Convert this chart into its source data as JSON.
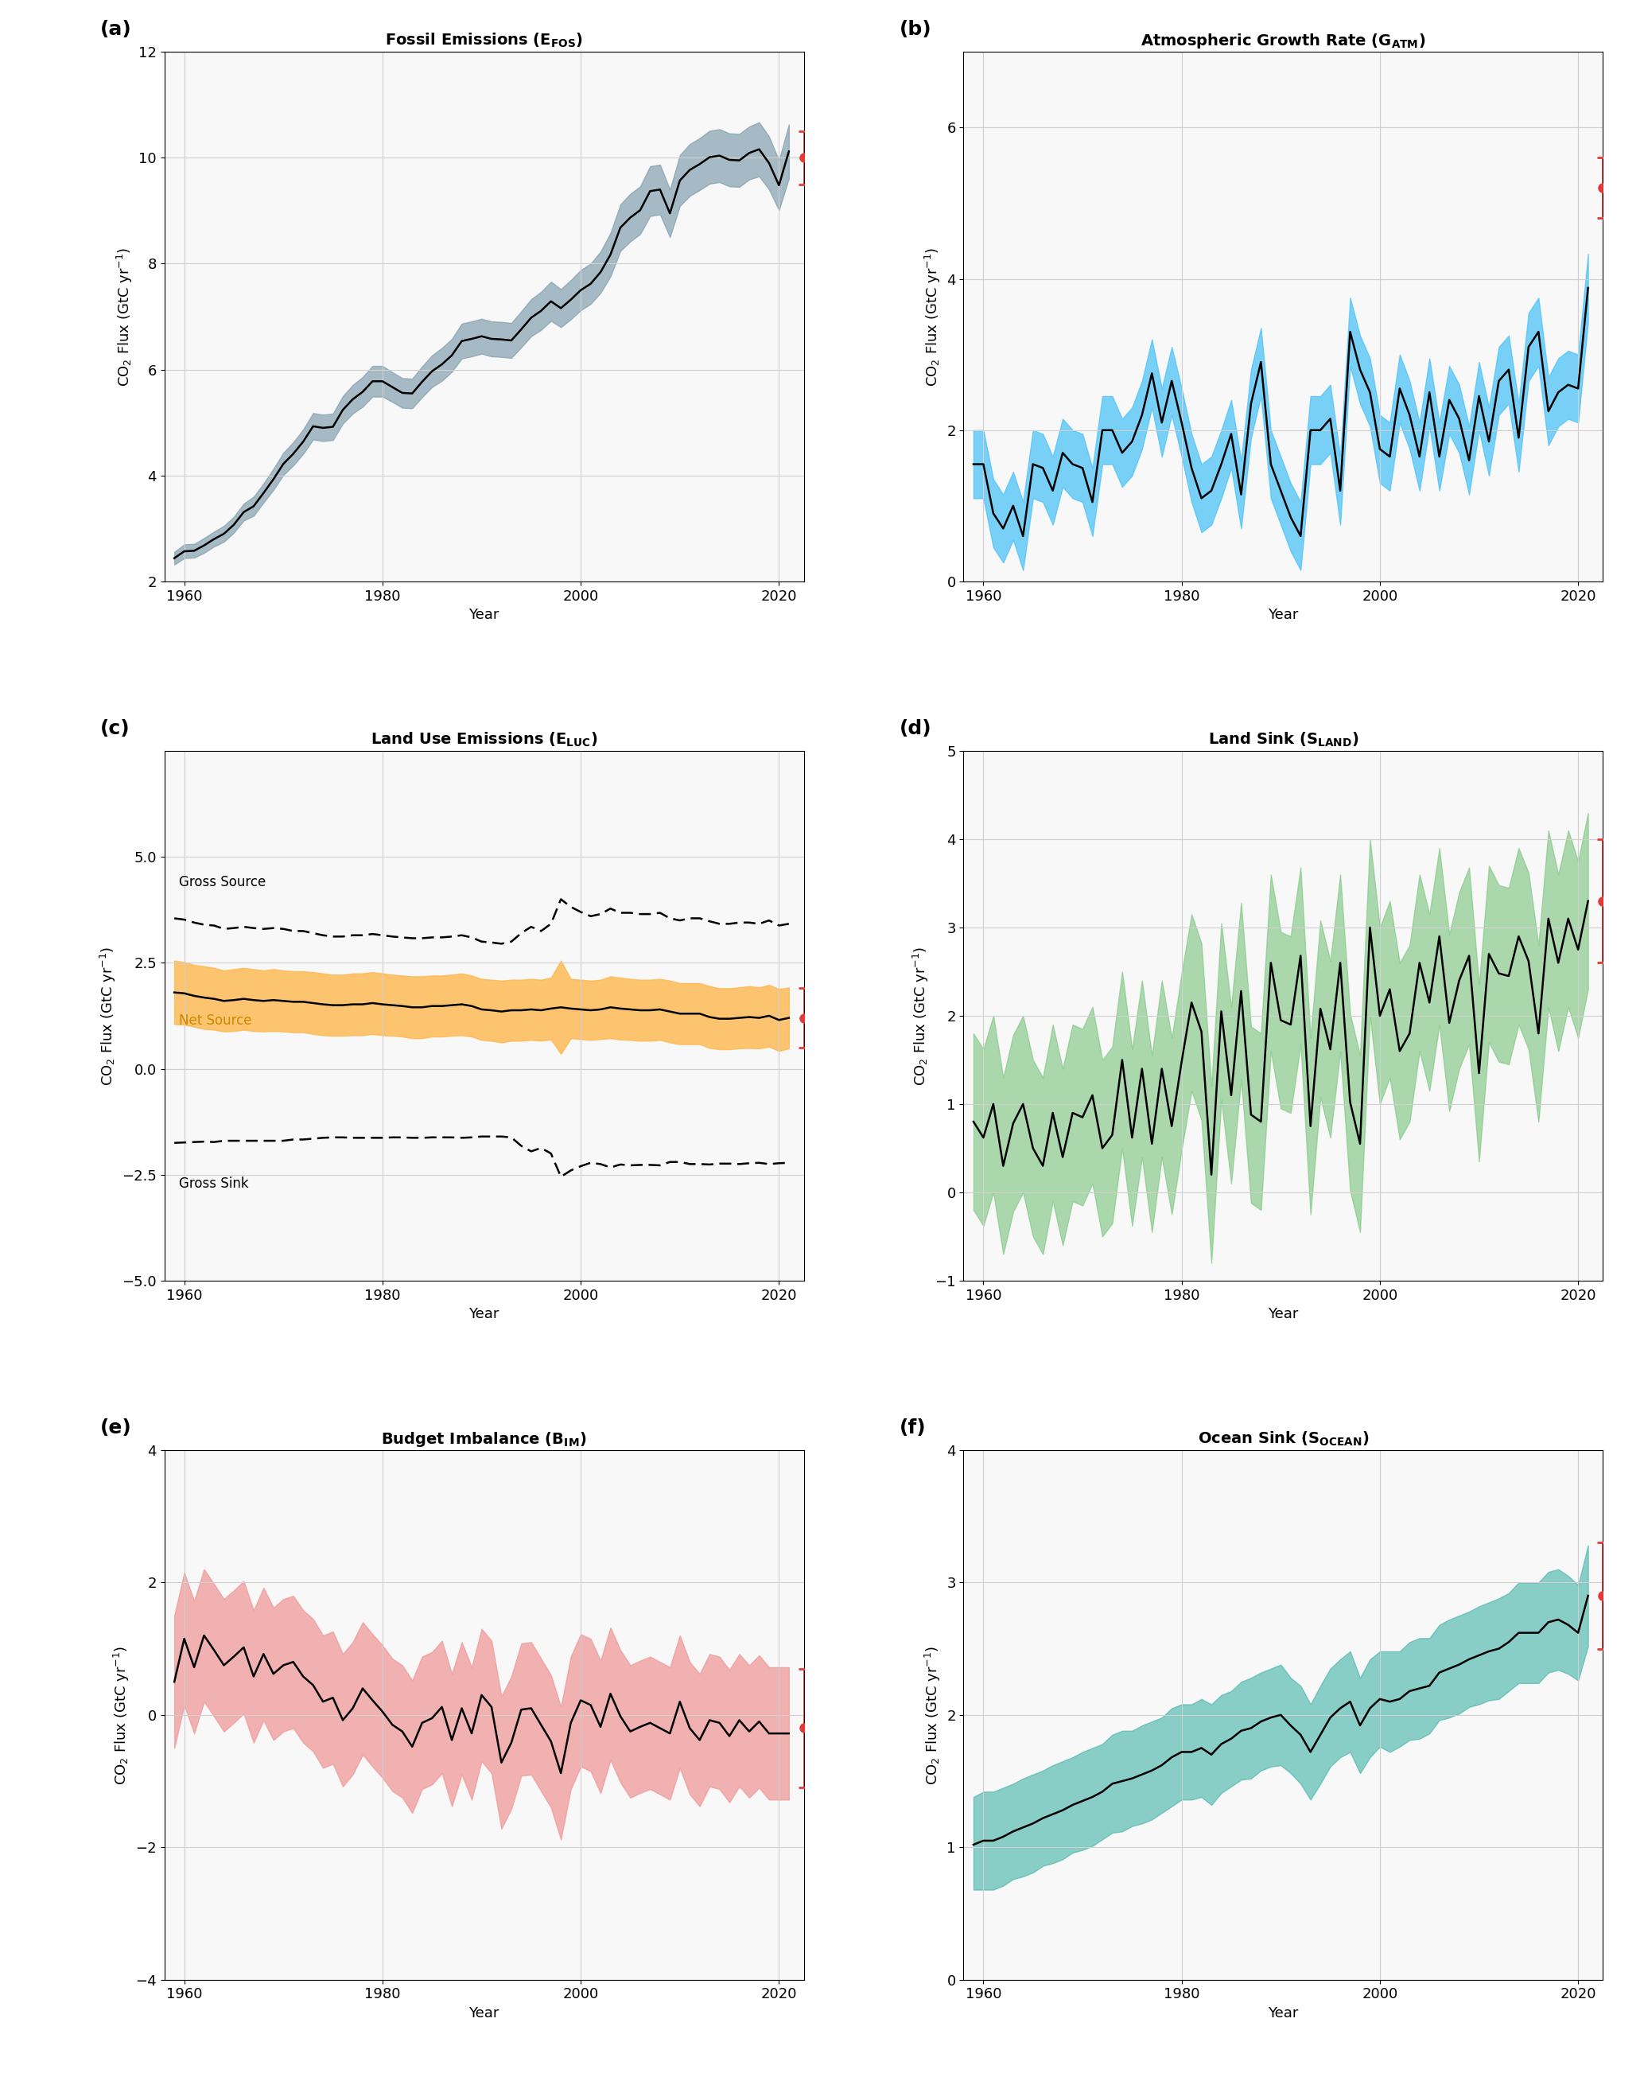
{
  "years": [
    1959,
    1960,
    1961,
    1962,
    1963,
    1964,
    1965,
    1966,
    1967,
    1968,
    1969,
    1970,
    1971,
    1972,
    1973,
    1974,
    1975,
    1976,
    1977,
    1978,
    1979,
    1980,
    1981,
    1982,
    1983,
    1984,
    1985,
    1986,
    1987,
    1988,
    1989,
    1990,
    1991,
    1992,
    1993,
    1994,
    1995,
    1996,
    1997,
    1998,
    1999,
    2000,
    2001,
    2002,
    2003,
    2004,
    2005,
    2006,
    2007,
    2008,
    2009,
    2010,
    2011,
    2012,
    2013,
    2014,
    2015,
    2016,
    2017,
    2018,
    2019,
    2020,
    2021
  ],
  "fos_mean": [
    2.44,
    2.57,
    2.58,
    2.68,
    2.8,
    2.9,
    3.07,
    3.31,
    3.42,
    3.67,
    3.93,
    4.22,
    4.41,
    4.64,
    4.93,
    4.9,
    4.92,
    5.24,
    5.44,
    5.58,
    5.78,
    5.78,
    5.67,
    5.56,
    5.55,
    5.77,
    5.97,
    6.1,
    6.27,
    6.54,
    6.58,
    6.63,
    6.58,
    6.57,
    6.55,
    6.76,
    6.98,
    7.11,
    7.29,
    7.16,
    7.32,
    7.5,
    7.62,
    7.84,
    8.17,
    8.68,
    8.87,
    9.01,
    9.37,
    9.4,
    8.95,
    9.57,
    9.77,
    9.88,
    10.01,
    10.04,
    9.96,
    9.95,
    10.09,
    10.16,
    9.9,
    9.48,
    10.12
  ],
  "fos_upper": [
    2.56,
    2.7,
    2.71,
    2.82,
    2.94,
    3.05,
    3.22,
    3.47,
    3.6,
    3.85,
    4.13,
    4.43,
    4.63,
    4.87,
    5.18,
    5.15,
    5.17,
    5.5,
    5.71,
    5.86,
    6.07,
    6.07,
    5.95,
    5.84,
    5.83,
    6.06,
    6.27,
    6.41,
    6.58,
    6.87,
    6.91,
    6.96,
    6.91,
    6.9,
    6.88,
    7.1,
    7.33,
    7.47,
    7.66,
    7.52,
    7.69,
    7.88,
    8.0,
    8.23,
    8.58,
    9.12,
    9.32,
    9.46,
    9.84,
    9.87,
    9.4,
    10.05,
    10.26,
    10.37,
    10.51,
    10.54,
    10.46,
    10.45,
    10.59,
    10.67,
    10.4,
    9.95,
    10.63
  ],
  "fos_lower": [
    2.32,
    2.44,
    2.45,
    2.54,
    2.66,
    2.75,
    2.92,
    3.15,
    3.24,
    3.49,
    3.73,
    4.01,
    4.19,
    4.41,
    4.68,
    4.65,
    4.67,
    4.98,
    5.17,
    5.3,
    5.49,
    5.49,
    5.39,
    5.28,
    5.27,
    5.48,
    5.67,
    5.79,
    5.96,
    6.21,
    6.25,
    6.3,
    6.25,
    6.24,
    6.22,
    6.42,
    6.63,
    6.75,
    6.92,
    6.8,
    6.95,
    7.12,
    7.24,
    7.45,
    7.76,
    8.24,
    8.42,
    8.56,
    8.9,
    8.93,
    8.5,
    9.09,
    9.28,
    9.39,
    9.51,
    9.54,
    9.46,
    9.45,
    9.59,
    9.65,
    9.4,
    9.01,
    9.61
  ],
  "fos_2022_val": 10.0,
  "fos_2022_err": 0.5,
  "atm_mean": [
    1.55,
    1.55,
    0.9,
    0.7,
    1.0,
    0.6,
    1.55,
    1.5,
    1.2,
    1.7,
    1.55,
    1.5,
    1.05,
    2.0,
    2.0,
    1.7,
    1.85,
    2.2,
    2.75,
    2.1,
    2.65,
    2.1,
    1.5,
    1.1,
    1.2,
    1.55,
    1.95,
    1.15,
    2.35,
    2.9,
    1.55,
    1.2,
    0.85,
    0.6,
    2.0,
    2.0,
    2.15,
    1.2,
    3.3,
    2.8,
    2.5,
    1.75,
    1.65,
    2.55,
    2.2,
    1.65,
    2.5,
    1.65,
    2.4,
    2.15,
    1.6,
    2.45,
    1.85,
    2.65,
    2.8,
    1.9,
    3.1,
    3.3,
    2.25,
    2.5,
    2.6,
    2.55,
    3.88
  ],
  "atm_upper": [
    2.0,
    2.0,
    1.35,
    1.15,
    1.45,
    1.05,
    2.0,
    1.95,
    1.65,
    2.15,
    2.0,
    1.95,
    1.5,
    2.45,
    2.45,
    2.15,
    2.3,
    2.65,
    3.2,
    2.55,
    3.1,
    2.55,
    1.95,
    1.55,
    1.65,
    2.0,
    2.4,
    1.6,
    2.8,
    3.35,
    2.0,
    1.65,
    1.3,
    1.05,
    2.45,
    2.45,
    2.6,
    1.65,
    3.75,
    3.25,
    2.95,
    2.2,
    2.1,
    3.0,
    2.65,
    2.1,
    2.95,
    2.1,
    2.85,
    2.6,
    2.05,
    2.9,
    2.3,
    3.1,
    3.25,
    2.35,
    3.55,
    3.75,
    2.7,
    2.95,
    3.05,
    3.0,
    4.33
  ],
  "atm_lower": [
    1.1,
    1.1,
    0.45,
    0.25,
    0.55,
    0.15,
    1.1,
    1.05,
    0.75,
    1.25,
    1.1,
    1.05,
    0.6,
    1.55,
    1.55,
    1.25,
    1.4,
    1.75,
    2.3,
    1.65,
    2.2,
    1.65,
    1.05,
    0.65,
    0.75,
    1.1,
    1.5,
    0.7,
    1.9,
    2.45,
    1.1,
    0.75,
    0.4,
    0.15,
    1.55,
    1.55,
    1.7,
    0.75,
    2.85,
    2.35,
    2.05,
    1.3,
    1.2,
    2.1,
    1.75,
    1.2,
    2.05,
    1.2,
    1.95,
    1.7,
    1.15,
    2.0,
    1.4,
    2.2,
    2.35,
    1.45,
    2.65,
    2.85,
    1.8,
    2.05,
    2.15,
    2.1,
    3.43
  ],
  "atm_2022_val": 5.2,
  "atm_2022_err": 0.4,
  "luc_net_mean": [
    1.8,
    1.78,
    1.72,
    1.68,
    1.65,
    1.6,
    1.62,
    1.65,
    1.62,
    1.6,
    1.62,
    1.6,
    1.58,
    1.58,
    1.55,
    1.52,
    1.5,
    1.5,
    1.52,
    1.52,
    1.55,
    1.52,
    1.5,
    1.48,
    1.45,
    1.45,
    1.48,
    1.48,
    1.5,
    1.52,
    1.48,
    1.4,
    1.38,
    1.35,
    1.38,
    1.38,
    1.4,
    1.38,
    1.42,
    1.45,
    1.42,
    1.4,
    1.38,
    1.4,
    1.45,
    1.42,
    1.4,
    1.38,
    1.38,
    1.4,
    1.35,
    1.3,
    1.3,
    1.3,
    1.22,
    1.18,
    1.18,
    1.2,
    1.22,
    1.2,
    1.25,
    1.15,
    1.2
  ],
  "luc_net_upper": [
    2.55,
    2.52,
    2.45,
    2.42,
    2.38,
    2.32,
    2.35,
    2.38,
    2.35,
    2.32,
    2.35,
    2.32,
    2.3,
    2.3,
    2.28,
    2.25,
    2.22,
    2.22,
    2.25,
    2.25,
    2.28,
    2.25,
    2.22,
    2.2,
    2.18,
    2.18,
    2.2,
    2.2,
    2.22,
    2.25,
    2.2,
    2.12,
    2.1,
    2.08,
    2.1,
    2.1,
    2.12,
    2.1,
    2.15,
    2.55,
    2.12,
    2.1,
    2.08,
    2.1,
    2.18,
    2.15,
    2.12,
    2.1,
    2.1,
    2.12,
    2.08,
    2.02,
    2.02,
    2.02,
    1.95,
    1.9,
    1.9,
    1.92,
    1.95,
    1.92,
    1.98,
    1.88,
    1.92
  ],
  "luc_net_lower": [
    1.05,
    1.04,
    0.99,
    0.94,
    0.92,
    0.88,
    0.89,
    0.92,
    0.89,
    0.88,
    0.89,
    0.88,
    0.86,
    0.86,
    0.82,
    0.79,
    0.78,
    0.78,
    0.79,
    0.79,
    0.82,
    0.79,
    0.78,
    0.76,
    0.72,
    0.72,
    0.76,
    0.76,
    0.78,
    0.79,
    0.76,
    0.68,
    0.66,
    0.62,
    0.66,
    0.66,
    0.68,
    0.66,
    0.69,
    0.35,
    0.72,
    0.7,
    0.68,
    0.7,
    0.72,
    0.69,
    0.68,
    0.66,
    0.66,
    0.68,
    0.62,
    0.58,
    0.58,
    0.58,
    0.49,
    0.46,
    0.46,
    0.48,
    0.49,
    0.48,
    0.52,
    0.42,
    0.48
  ],
  "luc_gross_source": [
    3.55,
    3.52,
    3.45,
    3.4,
    3.38,
    3.3,
    3.32,
    3.35,
    3.32,
    3.3,
    3.32,
    3.3,
    3.25,
    3.25,
    3.2,
    3.15,
    3.12,
    3.12,
    3.15,
    3.15,
    3.18,
    3.15,
    3.12,
    3.1,
    3.08,
    3.08,
    3.1,
    3.1,
    3.12,
    3.15,
    3.1,
    3.0,
    2.98,
    2.95,
    3.0,
    3.2,
    3.35,
    3.25,
    3.42,
    4.0,
    3.82,
    3.7,
    3.6,
    3.65,
    3.78,
    3.68,
    3.68,
    3.65,
    3.65,
    3.68,
    3.55,
    3.5,
    3.55,
    3.55,
    3.48,
    3.42,
    3.42,
    3.45,
    3.45,
    3.42,
    3.5,
    3.38,
    3.42
  ],
  "luc_gross_sink": [
    -1.75,
    -1.74,
    -1.73,
    -1.72,
    -1.73,
    -1.7,
    -1.7,
    -1.7,
    -1.7,
    -1.7,
    -1.7,
    -1.7,
    -1.67,
    -1.67,
    -1.65,
    -1.63,
    -1.62,
    -1.62,
    -1.63,
    -1.63,
    -1.63,
    -1.63,
    -1.62,
    -1.62,
    -1.63,
    -1.63,
    -1.62,
    -1.62,
    -1.62,
    -1.63,
    -1.62,
    -1.6,
    -1.6,
    -1.6,
    -1.62,
    -1.82,
    -1.95,
    -1.87,
    -2.0,
    -2.55,
    -2.4,
    -2.3,
    -2.22,
    -2.25,
    -2.33,
    -2.26,
    -2.28,
    -2.27,
    -2.27,
    -2.28,
    -2.2,
    -2.2,
    -2.25,
    -2.25,
    -2.26,
    -2.24,
    -2.24,
    -2.25,
    -2.23,
    -2.22,
    -2.25,
    -2.23,
    -2.22
  ],
  "luc_2022_val": 1.2,
  "luc_2022_err": 0.7,
  "land_mean": [
    0.8,
    0.62,
    1.0,
    0.3,
    0.78,
    1.0,
    0.5,
    0.3,
    0.9,
    0.4,
    0.9,
    0.85,
    1.1,
    0.5,
    0.65,
    1.5,
    0.62,
    1.4,
    0.55,
    1.4,
    0.75,
    1.48,
    2.15,
    1.82,
    0.2,
    2.05,
    1.1,
    2.28,
    0.88,
    0.8,
    2.6,
    1.95,
    1.9,
    2.68,
    0.75,
    2.08,
    1.62,
    2.6,
    1.02,
    0.55,
    3.0,
    2.0,
    2.3,
    1.6,
    1.8,
    2.6,
    2.15,
    2.9,
    1.92,
    2.4,
    2.68,
    1.35,
    2.7,
    2.48,
    2.45,
    2.9,
    2.62,
    1.8,
    3.1,
    2.6,
    3.1,
    2.75,
    3.3
  ],
  "land_upper": [
    1.8,
    1.62,
    2.0,
    1.3,
    1.78,
    2.0,
    1.5,
    1.3,
    1.9,
    1.4,
    1.9,
    1.85,
    2.1,
    1.5,
    1.65,
    2.5,
    1.62,
    2.4,
    1.55,
    2.4,
    1.75,
    2.48,
    3.15,
    2.82,
    1.2,
    3.05,
    2.1,
    3.28,
    1.88,
    1.8,
    3.6,
    2.95,
    2.9,
    3.68,
    1.75,
    3.08,
    2.62,
    3.6,
    2.02,
    1.55,
    4.0,
    3.0,
    3.3,
    2.6,
    2.8,
    3.6,
    3.15,
    3.9,
    2.92,
    3.4,
    3.68,
    2.35,
    3.7,
    3.48,
    3.45,
    3.9,
    3.62,
    2.8,
    4.1,
    3.6,
    4.1,
    3.75,
    4.3
  ],
  "land_lower": [
    -0.2,
    -0.38,
    0.0,
    -0.7,
    -0.22,
    0.0,
    -0.5,
    -0.7,
    -0.1,
    -0.6,
    -0.1,
    -0.15,
    0.1,
    -0.5,
    -0.35,
    0.5,
    -0.38,
    0.4,
    -0.45,
    0.4,
    -0.25,
    0.48,
    1.15,
    0.82,
    -0.8,
    1.05,
    0.1,
    1.28,
    -0.12,
    -0.2,
    1.6,
    0.95,
    0.9,
    1.68,
    -0.25,
    1.08,
    0.62,
    1.6,
    0.02,
    -0.45,
    2.0,
    1.0,
    1.3,
    0.6,
    0.8,
    1.6,
    1.15,
    1.9,
    0.92,
    1.4,
    1.68,
    0.35,
    1.7,
    1.48,
    1.45,
    1.9,
    1.62,
    0.8,
    2.1,
    1.6,
    2.1,
    1.75,
    2.3
  ],
  "land_2022_val": 3.3,
  "land_2022_err": 0.7,
  "bim_mean": [
    0.5,
    1.15,
    0.72,
    1.2,
    0.98,
    0.75,
    0.88,
    1.02,
    0.58,
    0.92,
    0.62,
    0.75,
    0.8,
    0.58,
    0.45,
    0.2,
    0.26,
    -0.08,
    0.1,
    0.4,
    0.22,
    0.05,
    -0.15,
    -0.25,
    -0.48,
    -0.12,
    -0.05,
    0.12,
    -0.38,
    0.1,
    -0.28,
    0.3,
    0.12,
    -0.72,
    -0.42,
    0.08,
    0.1,
    -0.15,
    -0.4,
    -0.88,
    -0.12,
    0.22,
    0.15,
    -0.18,
    0.32,
    -0.02,
    -0.25,
    -0.18,
    -0.12,
    -0.2,
    -0.28,
    0.2,
    -0.2,
    -0.38,
    -0.08,
    -0.12,
    -0.32,
    -0.08,
    -0.25,
    -0.1,
    -0.28,
    -0.28,
    -0.28
  ],
  "bim_upper": [
    1.5,
    2.15,
    1.72,
    2.2,
    1.98,
    1.75,
    1.88,
    2.02,
    1.58,
    1.92,
    1.62,
    1.75,
    1.8,
    1.58,
    1.45,
    1.2,
    1.26,
    0.92,
    1.1,
    1.4,
    1.22,
    1.05,
    0.85,
    0.75,
    0.52,
    0.88,
    0.95,
    1.12,
    0.62,
    1.1,
    0.72,
    1.3,
    1.12,
    0.28,
    0.58,
    1.08,
    1.1,
    0.85,
    0.6,
    0.12,
    0.88,
    1.22,
    1.15,
    0.82,
    1.32,
    0.98,
    0.75,
    0.82,
    0.88,
    0.8,
    0.72,
    1.2,
    0.8,
    0.62,
    0.92,
    0.88,
    0.68,
    0.92,
    0.75,
    0.9,
    0.72,
    0.72,
    0.72
  ],
  "bim_lower": [
    -0.5,
    0.15,
    -0.28,
    0.2,
    -0.02,
    -0.25,
    -0.12,
    0.02,
    -0.42,
    -0.08,
    -0.38,
    -0.25,
    -0.2,
    -0.42,
    -0.55,
    -0.8,
    -0.74,
    -1.08,
    -0.9,
    -0.6,
    -0.78,
    -0.95,
    -1.15,
    -1.25,
    -1.48,
    -1.12,
    -1.05,
    -0.88,
    -1.38,
    -0.9,
    -1.28,
    -0.7,
    -0.88,
    -1.72,
    -1.42,
    -0.92,
    -0.9,
    -1.15,
    -1.4,
    -1.88,
    -1.12,
    -0.78,
    -0.85,
    -1.18,
    -0.68,
    -1.02,
    -1.25,
    -1.18,
    -1.12,
    -1.2,
    -1.28,
    -0.8,
    -1.2,
    -1.38,
    -1.08,
    -1.12,
    -1.32,
    -1.08,
    -1.25,
    -1.1,
    -1.28,
    -1.28,
    -1.28
  ],
  "bim_2022_val": -0.2,
  "bim_2022_err": 0.9,
  "ocean_mean": [
    1.02,
    1.05,
    1.05,
    1.08,
    1.12,
    1.15,
    1.18,
    1.22,
    1.25,
    1.28,
    1.32,
    1.35,
    1.38,
    1.42,
    1.48,
    1.5,
    1.52,
    1.55,
    1.58,
    1.62,
    1.68,
    1.72,
    1.72,
    1.75,
    1.7,
    1.78,
    1.82,
    1.88,
    1.9,
    1.95,
    1.98,
    2.0,
    1.92,
    1.85,
    1.72,
    1.85,
    1.98,
    2.05,
    2.1,
    1.92,
    2.05,
    2.12,
    2.1,
    2.12,
    2.18,
    2.2,
    2.22,
    2.32,
    2.35,
    2.38,
    2.42,
    2.45,
    2.48,
    2.5,
    2.55,
    2.62,
    2.62,
    2.62,
    2.7,
    2.72,
    2.68,
    2.62,
    2.9
  ],
  "ocean_upper": [
    1.38,
    1.42,
    1.42,
    1.45,
    1.48,
    1.52,
    1.55,
    1.58,
    1.62,
    1.65,
    1.68,
    1.72,
    1.75,
    1.78,
    1.85,
    1.88,
    1.88,
    1.92,
    1.95,
    1.98,
    2.05,
    2.08,
    2.08,
    2.12,
    2.08,
    2.15,
    2.18,
    2.25,
    2.28,
    2.32,
    2.35,
    2.38,
    2.28,
    2.22,
    2.08,
    2.22,
    2.35,
    2.42,
    2.48,
    2.28,
    2.42,
    2.48,
    2.48,
    2.48,
    2.55,
    2.58,
    2.58,
    2.68,
    2.72,
    2.75,
    2.78,
    2.82,
    2.85,
    2.88,
    2.92,
    3.0,
    3.0,
    3.0,
    3.08,
    3.1,
    3.05,
    2.98,
    3.28
  ],
  "ocean_lower": [
    0.68,
    0.68,
    0.68,
    0.71,
    0.76,
    0.78,
    0.81,
    0.86,
    0.88,
    0.91,
    0.96,
    0.98,
    1.01,
    1.06,
    1.11,
    1.12,
    1.16,
    1.18,
    1.21,
    1.26,
    1.31,
    1.36,
    1.36,
    1.38,
    1.32,
    1.41,
    1.46,
    1.51,
    1.52,
    1.58,
    1.61,
    1.62,
    1.56,
    1.48,
    1.36,
    1.48,
    1.61,
    1.68,
    1.72,
    1.56,
    1.68,
    1.76,
    1.72,
    1.76,
    1.81,
    1.82,
    1.86,
    1.96,
    1.98,
    2.01,
    2.06,
    2.08,
    2.11,
    2.12,
    2.18,
    2.24,
    2.24,
    2.24,
    2.32,
    2.34,
    2.31,
    2.26,
    2.52
  ],
  "ocean_2022_val": 2.9,
  "ocean_2022_err": 0.4,
  "panel_labels": [
    "(a)",
    "(b)",
    "(c)",
    "(d)",
    "(e)",
    "(f)"
  ],
  "panel_titles": [
    "Fossil Emissions (E$_\\mathregular{FOS}$)",
    "Atmospheric Growth Rate (G$_\\mathregular{ATM}$)",
    "Land Use Emissions (E$_\\mathregular{LUC}$)",
    "Land Sink (S$_\\mathregular{LAND}$)",
    "Budget Imbalance (B$_\\mathregular{IM}$)",
    "Ocean Sink (S$_\\mathregular{OCEAN}$)"
  ],
  "ylabel": "CO$_2$ Flux (GtC yr$^{-1}$)",
  "xlabel": "Year",
  "colors": {
    "fos": "#7b9aaa",
    "atm": "#4fc3f7",
    "luc_net": "#ffb74d",
    "land": "#81c784",
    "bim": "#ef9a9a",
    "ocean": "#4db6ac",
    "line": "#000000",
    "red_marker": "#e53935"
  },
  "ylims": {
    "a": [
      2,
      12
    ],
    "b": [
      0,
      7
    ],
    "c": [
      -5.0,
      7.5
    ],
    "d": [
      -1,
      5
    ],
    "e": [
      -4,
      4
    ],
    "f": [
      0,
      4
    ]
  },
  "yticks": {
    "a": [
      2,
      4,
      6,
      8,
      10,
      12
    ],
    "b": [
      0,
      2,
      4,
      6
    ],
    "c": [
      -5.0,
      -2.5,
      0.0,
      2.5,
      5.0
    ],
    "d": [
      -1,
      0,
      1,
      2,
      3,
      4,
      5
    ],
    "e": [
      -4,
      -2,
      0,
      2,
      4
    ],
    "f": [
      0,
      1,
      2,
      3,
      4
    ]
  },
  "xlim": [
    1958,
    2022.5
  ],
  "xticks": [
    1960,
    1980,
    2000,
    2020
  ],
  "err_x": 2022.5
}
